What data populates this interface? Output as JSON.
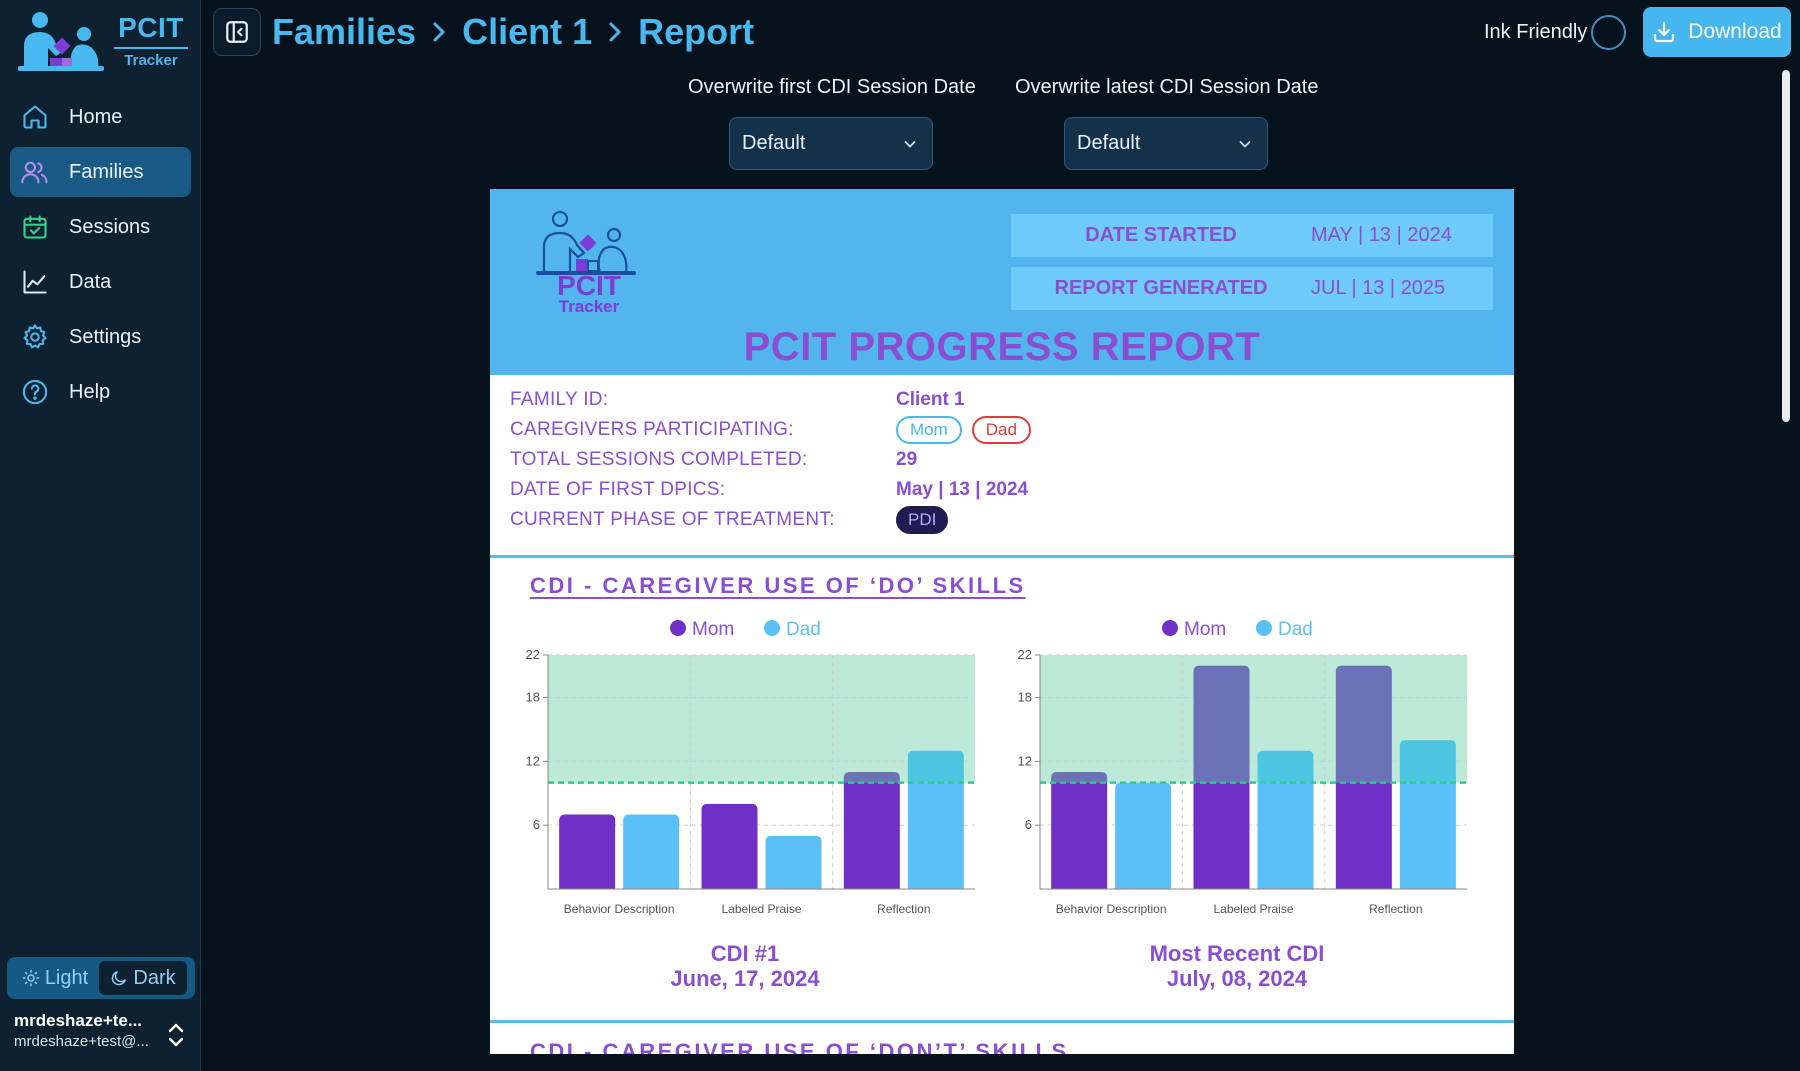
{
  "brand": {
    "title": "PCIT",
    "subtitle": "Tracker"
  },
  "nav": [
    {
      "label": "Home",
      "icon": "home-icon",
      "active": false
    },
    {
      "label": "Families",
      "icon": "users-icon",
      "active": true
    },
    {
      "label": "Sessions",
      "icon": "calendar-check-icon",
      "active": false
    },
    {
      "label": "Data",
      "icon": "line-chart-icon",
      "active": false
    },
    {
      "label": "Settings",
      "icon": "gear-icon",
      "active": false
    },
    {
      "label": "Help",
      "icon": "help-circle-icon",
      "active": false
    }
  ],
  "theme": {
    "light_label": "Light",
    "dark_label": "Dark",
    "selected": "Dark"
  },
  "user": {
    "name": "mrdeshaze+te...",
    "email": "mrdeshaze+test@..."
  },
  "breadcrumb": {
    "items": [
      "Families",
      "Client 1",
      "Report"
    ]
  },
  "toolbar": {
    "ink_label": "Ink Friendly",
    "ink_enabled": false,
    "download_label": "Download"
  },
  "session_select": {
    "first_label": "Overwrite first CDI Session Date",
    "first_value": "Default",
    "latest_label": "Overwrite latest CDI Session Date",
    "latest_value": "Default"
  },
  "report": {
    "logo_title": "PCIT",
    "logo_sub": "Tracker",
    "date_started_label": "DATE STARTED",
    "date_started_value": "MAY | 13 | 2024",
    "report_generated_label": "REPORT GENERATED",
    "report_generated_value": "JUL | 13 | 2025",
    "title": "PCIT PROGRESS REPORT",
    "info": {
      "family_id_label": "FAMILY ID:",
      "family_id_value": "Client 1",
      "caregivers_label": "CAREGIVERS PARTICIPATING:",
      "caregivers": [
        "Mom",
        "Dad"
      ],
      "sessions_label": "TOTAL SESSIONS COMPLETED:",
      "sessions_value": "29",
      "first_dpics_label": "DATE OF FIRST DPICS:",
      "first_dpics_value": "May | 13 | 2024",
      "phase_label": "CURRENT PHASE OF TREATMENT:",
      "phase_value": "PDI"
    },
    "section_do_title": "CDI - CAREGIVER USE OF ‘DO’ SKILLS",
    "section_dont_title": "CDI - CAREGIVER USE OF ‘DON’T’ SKILLS",
    "charts": [
      {
        "caption_line1": "CDI #1",
        "caption_line2": "June, 17, 2024"
      },
      {
        "caption_line1": "Most Recent CDI",
        "caption_line2": "July, 08, 2024"
      }
    ]
  },
  "colors": {
    "accent": "#4ab8f0",
    "report_purple": "#8a4fd0",
    "mom": "#7030c8",
    "dad": "#5bc0f8",
    "mom_over": "#6b72b8",
    "dad_over": "#4cc6e0",
    "mastery_band": "#bde9d8",
    "mastery_line": "#2ecc8f"
  },
  "chart_data": [
    {
      "type": "bar",
      "categories": [
        "Behavior Description",
        "Labeled Praise",
        "Reflection"
      ],
      "series": [
        {
          "name": "Mom",
          "values": [
            7,
            8,
            11
          ]
        },
        {
          "name": "Dad",
          "values": [
            7,
            5,
            13
          ]
        }
      ],
      "ylim": [
        0,
        22
      ],
      "yticks": [
        6,
        12,
        18,
        22
      ],
      "mastery_threshold": 10,
      "legend": "top-center",
      "grid": true
    },
    {
      "type": "bar",
      "categories": [
        "Behavior Description",
        "Labeled Praise",
        "Reflection"
      ],
      "series": [
        {
          "name": "Mom",
          "values": [
            11,
            21,
            21
          ]
        },
        {
          "name": "Dad",
          "values": [
            10,
            13,
            14
          ]
        }
      ],
      "ylim": [
        0,
        22
      ],
      "yticks": [
        6,
        12,
        18,
        22
      ],
      "mastery_threshold": 10,
      "legend": "top-center",
      "grid": true
    }
  ]
}
